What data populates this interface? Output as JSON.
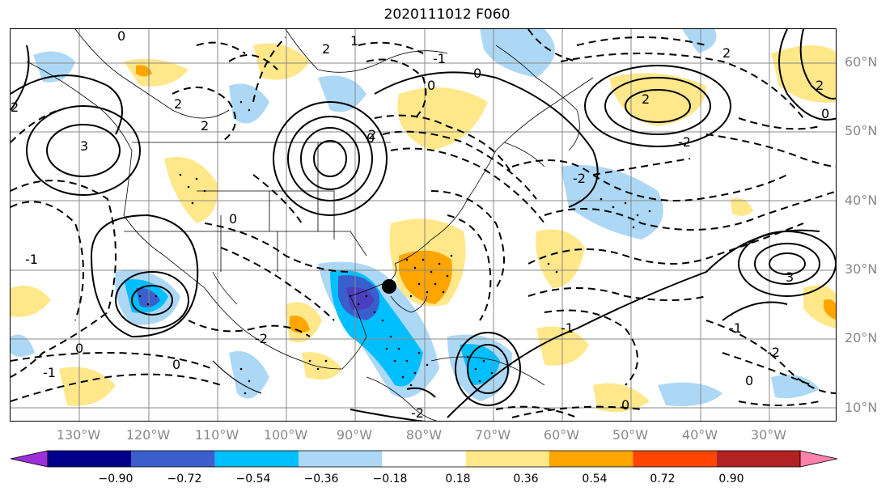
{
  "title": "2020111012 F060",
  "lat_labels": [
    "60°N",
    "50°N",
    "40°N",
    "30°N",
    "20°N",
    "10°N"
  ],
  "lon_labels": [
    "130°W",
    "120°W",
    "110°W",
    "100°W",
    "90°W",
    "80°W",
    "70°W",
    "60°W",
    "50°W",
    "40°W",
    "30°W"
  ],
  "colorbar": {
    "colors": [
      "#9b30d9",
      "#00008b",
      "#3a5fcd",
      "#00bfff",
      "#add8f5",
      "#ffffff",
      "#ffe78a",
      "#ffa500",
      "#ff4500",
      "#b22222",
      "#ff82ab"
    ],
    "tick_labels": [
      "−0.90",
      "−0.72",
      "−0.54",
      "−0.36",
      "−0.18",
      "0.18",
      "0.36",
      "0.54",
      "0.72",
      "0.90"
    ]
  },
  "contour_labels": [
    "0",
    "2",
    "3",
    "2",
    "2",
    "0",
    "2",
    "0",
    "2",
    "1",
    "-2",
    "-2",
    "-1",
    "-1",
    "-2",
    "-2",
    "0",
    "0",
    "-1",
    "-1",
    "2",
    "0",
    "3",
    "0",
    "2",
    "2",
    "-1",
    "-2",
    "0",
    "0",
    "0"
  ],
  "storm_marker": "center-marker"
}
